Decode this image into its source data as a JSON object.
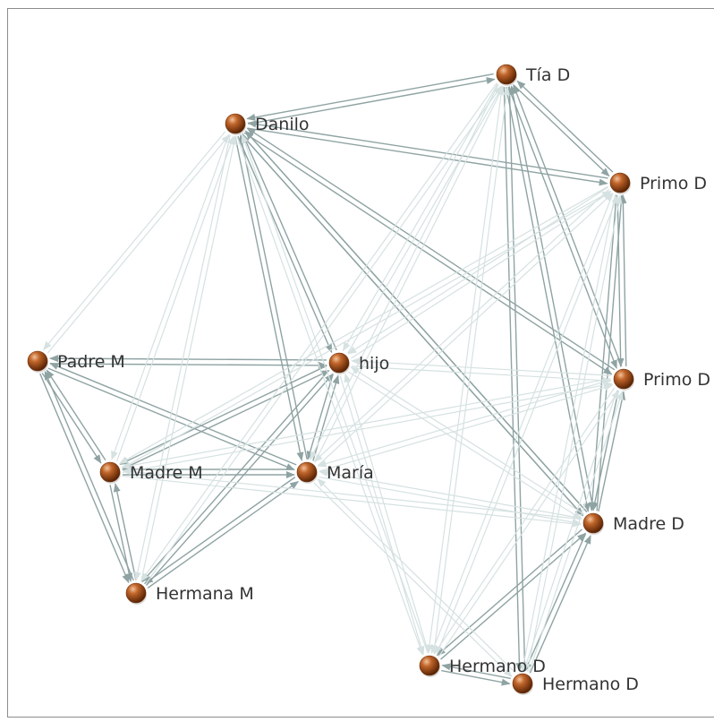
{
  "graph": {
    "nodes": [
      {
        "id": "tia-d",
        "label": "Tía D"
      },
      {
        "id": "danilo",
        "label": "Danilo"
      },
      {
        "id": "primo-d-1",
        "label": "Primo D"
      },
      {
        "id": "padre-m",
        "label": "Padre M"
      },
      {
        "id": "hijo",
        "label": "hijo"
      },
      {
        "id": "primo-d-2",
        "label": "Primo D"
      },
      {
        "id": "madre-m",
        "label": "Madre M"
      },
      {
        "id": "maria",
        "label": "María"
      },
      {
        "id": "madre-d",
        "label": "Madre D"
      },
      {
        "id": "hermana-m",
        "label": "Hermana M"
      },
      {
        "id": "hermano-d-1",
        "label": "Hermano D"
      },
      {
        "id": "hermano-d-2",
        "label": "Hermano D"
      }
    ],
    "edges": [
      [
        "danilo",
        "tia-d",
        "strong"
      ],
      [
        "danilo",
        "primo-d-1",
        "strong"
      ],
      [
        "tia-d",
        "primo-d-1",
        "strong"
      ],
      [
        "primo-d-1",
        "primo-d-2",
        "strong"
      ],
      [
        "tia-d",
        "primo-d-2",
        "strong"
      ],
      [
        "danilo",
        "primo-d-2",
        "strong"
      ],
      [
        "danilo",
        "madre-d",
        "strong"
      ],
      [
        "tia-d",
        "madre-d",
        "strong"
      ],
      [
        "primo-d-1",
        "madre-d",
        "strong"
      ],
      [
        "primo-d-2",
        "madre-d",
        "strong"
      ],
      [
        "danilo",
        "hijo",
        "strong"
      ],
      [
        "danilo",
        "maria",
        "strong"
      ],
      [
        "padre-m",
        "hijo",
        "strong"
      ],
      [
        "padre-m",
        "maria",
        "strong"
      ],
      [
        "padre-m",
        "madre-m",
        "strong"
      ],
      [
        "padre-m",
        "hermana-m",
        "strong"
      ],
      [
        "madre-m",
        "maria",
        "strong"
      ],
      [
        "madre-m",
        "hijo",
        "strong"
      ],
      [
        "maria",
        "hijo",
        "strong"
      ],
      [
        "hermana-m",
        "maria",
        "strong"
      ],
      [
        "hermana-m",
        "hijo",
        "strong"
      ],
      [
        "madre-m",
        "hermana-m",
        "strong"
      ],
      [
        "madre-d",
        "hermano-d-1",
        "strong"
      ],
      [
        "madre-d",
        "hermano-d-2",
        "strong"
      ],
      [
        "hermano-d-1",
        "hermano-d-2",
        "strong"
      ],
      [
        "tia-d",
        "hermano-d-2",
        "strong"
      ],
      [
        "danilo",
        "madre-d",
        "strong"
      ],
      [
        "danilo",
        "padre-m",
        "faint"
      ],
      [
        "danilo",
        "madre-m",
        "faint"
      ],
      [
        "danilo",
        "hermana-m",
        "faint"
      ],
      [
        "tia-d",
        "hijo",
        "faint"
      ],
      [
        "tia-d",
        "maria",
        "faint"
      ],
      [
        "tia-d",
        "hermano-d-1",
        "faint"
      ],
      [
        "primo-d-1",
        "maria",
        "faint"
      ],
      [
        "primo-d-1",
        "hijo",
        "faint"
      ],
      [
        "primo-d-1",
        "hermano-d-1",
        "faint"
      ],
      [
        "primo-d-1",
        "hermano-d-2",
        "faint"
      ],
      [
        "primo-d-2",
        "hijo",
        "faint"
      ],
      [
        "primo-d-2",
        "maria",
        "faint"
      ],
      [
        "primo-d-2",
        "hermano-d-1",
        "faint"
      ],
      [
        "primo-d-2",
        "hermano-d-2",
        "faint"
      ],
      [
        "madre-m",
        "madre-d",
        "faint"
      ],
      [
        "maria",
        "madre-d",
        "faint"
      ],
      [
        "hijo",
        "hermano-d-1",
        "faint"
      ],
      [
        "hijo",
        "madre-d",
        "faint"
      ],
      [
        "maria",
        "hermano-d-2",
        "faint"
      ],
      [
        "danilo",
        "hermano-d-1",
        "faint"
      ],
      [
        "tia-d",
        "hermana-m",
        "faint"
      ],
      [
        "primo-d-1",
        "madre-m",
        "faint"
      ],
      [
        "madre-m",
        "primo-d-2",
        "faint"
      ]
    ]
  },
  "colors": {
    "edge_strong": "#8fa3a3",
    "edge_faint": "#d6e1e1",
    "node_fill": "#b45a1e",
    "node_dark": "#6b2e08",
    "label": "#333333",
    "border": "#8c8c8c"
  }
}
